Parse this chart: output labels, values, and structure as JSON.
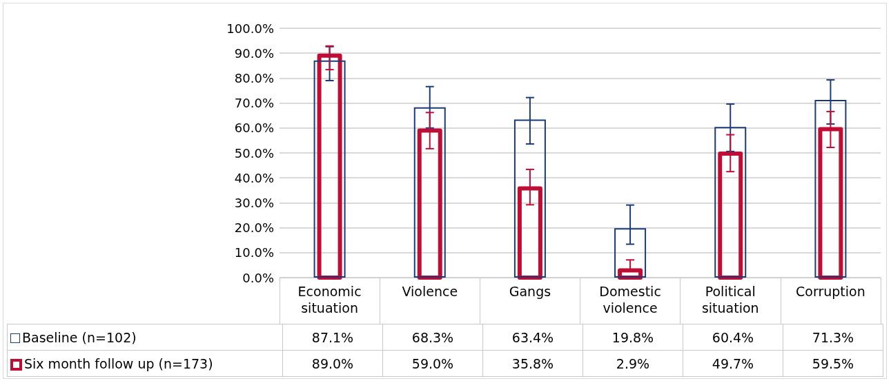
{
  "chart_data": {
    "type": "bar",
    "categories": [
      "Economic\nsituation",
      "Violence",
      "Gangs",
      "Domestic\nviolence",
      "Political\nsituation",
      "Corruption"
    ],
    "series": [
      {
        "name": "Baseline (n=102)",
        "color": "#1b3a78",
        "values": [
          87.1,
          68.3,
          63.4,
          19.8,
          60.4,
          71.3
        ],
        "value_labels": [
          "87.1%",
          "68.3%",
          "63.4%",
          "19.8%",
          "60.4%",
          "71.3%"
        ],
        "errors": [
          [
            79,
            92.6
          ],
          [
            60,
            76.6
          ],
          [
            53.6,
            72.2
          ],
          [
            13.4,
            29.1
          ],
          [
            50.6,
            69.6
          ],
          [
            61.6,
            79.3
          ]
        ]
      },
      {
        "name": "Six month follow up (n=173)",
        "color": "#c00d35",
        "values": [
          89.0,
          59.0,
          35.8,
          2.9,
          49.7,
          59.5
        ],
        "value_labels": [
          "89.0%",
          "59.0%",
          "35.8%",
          "2.9%",
          "49.7%",
          "59.5%"
        ],
        "errors": [
          [
            83.4,
            92.9
          ],
          [
            51.7,
            66.2
          ],
          [
            29.2,
            43.4
          ],
          [
            2.9,
            7.1
          ],
          [
            42.5,
            57.3
          ],
          [
            52.2,
            66.6
          ]
        ]
      }
    ],
    "ylim": [
      0,
      100
    ],
    "yticks": [
      {
        "value": 0,
        "label": "0.0%"
      },
      {
        "value": 10,
        "label": "10.0%"
      },
      {
        "value": 20,
        "label": "20.0%"
      },
      {
        "value": 30,
        "label": "30.0%"
      },
      {
        "value": 40,
        "label": "40.0%"
      },
      {
        "value": 50,
        "label": "50.0%"
      },
      {
        "value": 60,
        "label": "60.0%"
      },
      {
        "value": 70,
        "label": "70.0%"
      },
      {
        "value": 80,
        "label": "80.0%"
      },
      {
        "value": 90,
        "label": "90.0%"
      },
      {
        "value": 100,
        "label": "100.0%"
      }
    ],
    "grid": "y",
    "legend": "bottom"
  }
}
